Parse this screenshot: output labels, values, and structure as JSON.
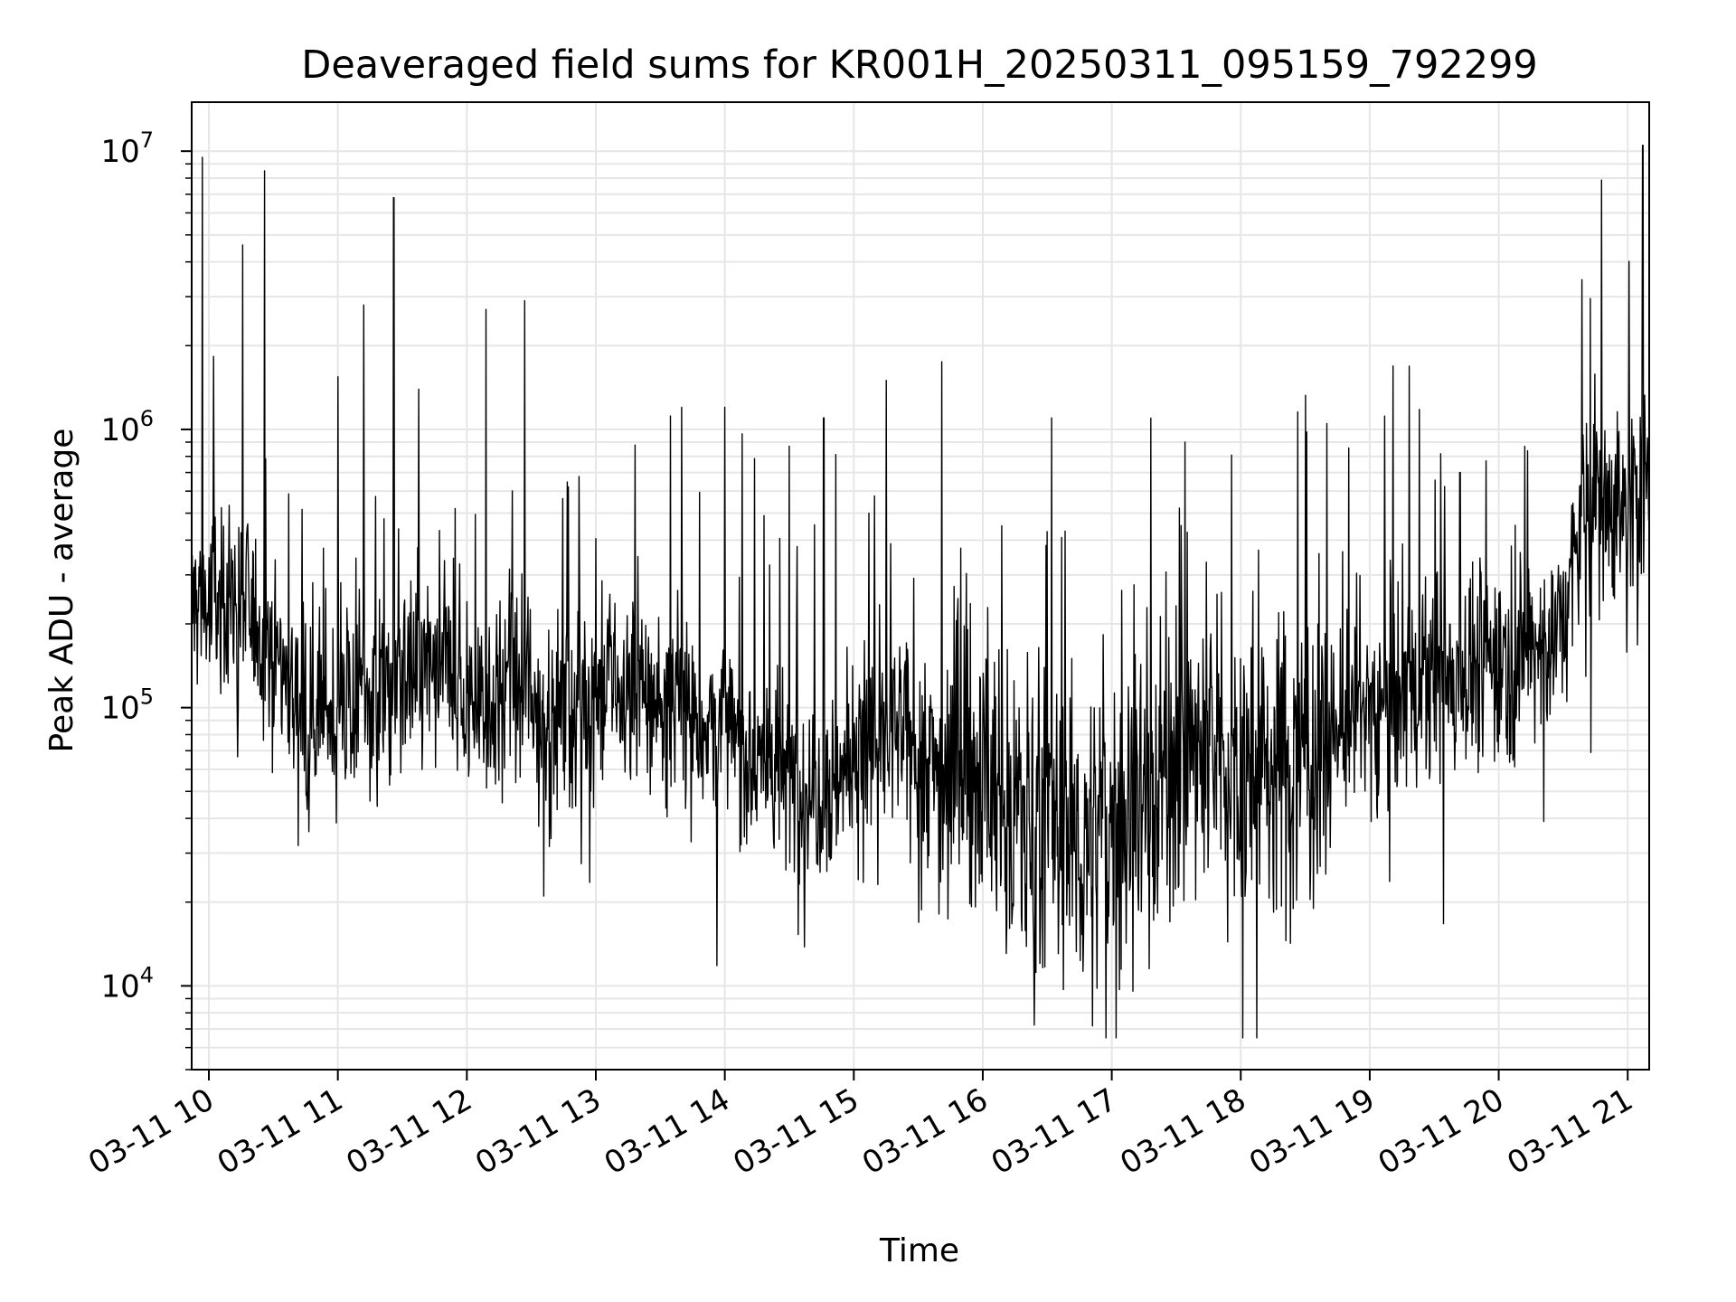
{
  "chart_data": {
    "type": "line",
    "title": "Deaveraged field sums for KR001H_20250311_095159_792299",
    "xlabel": "Time",
    "ylabel": "Peak ADU - average",
    "yscale": "log",
    "grid": true,
    "xlim": [
      "2025-03-11 09:52",
      "2025-03-11 21:10"
    ],
    "ylim": [
      5000,
      15000000
    ],
    "x_ticks": [
      "03-11 10",
      "03-11 11",
      "03-11 12",
      "03-11 13",
      "03-11 14",
      "03-11 15",
      "03-11 16",
      "03-11 17",
      "03-11 18",
      "03-11 19",
      "03-11 20",
      "03-11 21"
    ],
    "y_ticks": [
      {
        "value": 10000,
        "base": "10",
        "exp": "4"
      },
      {
        "value": 100000,
        "base": "10",
        "exp": "5"
      },
      {
        "value": 1000000,
        "base": "10",
        "exp": "6"
      },
      {
        "value": 10000000,
        "base": "10",
        "exp": "7"
      }
    ],
    "series": [
      {
        "color": "#000000",
        "x": [
          "09:52",
          "09:58",
          "10:00",
          "10:10",
          "10:20",
          "10:30",
          "10:40",
          "10:50",
          "11:00",
          "11:10",
          "11:20",
          "11:30",
          "11:40",
          "11:50",
          "12:00",
          "12:10",
          "12:20",
          "12:30",
          "12:40",
          "12:50",
          "13:00",
          "13:10",
          "13:20",
          "13:30",
          "13:40",
          "13:50",
          "14:00",
          "14:10",
          "14:20",
          "14:30",
          "14:40",
          "14:50",
          "15:00",
          "15:10",
          "15:20",
          "15:30",
          "15:40",
          "15:50",
          "16:00",
          "16:10",
          "16:20",
          "16:30",
          "16:40",
          "16:50",
          "17:00",
          "17:10",
          "17:20",
          "17:30",
          "17:40",
          "17:50",
          "18:00",
          "18:10",
          "18:20",
          "18:30",
          "18:40",
          "18:50",
          "19:00",
          "19:10",
          "19:20",
          "19:30",
          "19:40",
          "19:50",
          "20:00",
          "20:10",
          "20:20",
          "20:30",
          "20:40",
          "20:50",
          "21:00",
          "21:10"
        ],
        "y": [
          230000,
          250000,
          220000,
          260000,
          210000,
          170000,
          110000,
          100000,
          95000,
          110000,
          115000,
          125000,
          140000,
          130000,
          110000,
          105000,
          120000,
          100000,
          90000,
          105000,
          110000,
          115000,
          110000,
          105000,
          100000,
          90000,
          80000,
          70000,
          65000,
          55000,
          52000,
          55000,
          65000,
          75000,
          80000,
          70000,
          60000,
          70000,
          55000,
          45000,
          40000,
          38000,
          35000,
          30000,
          40000,
          45000,
          55000,
          65000,
          70000,
          65000,
          60000,
          55000,
          65000,
          70000,
          75000,
          90000,
          100000,
          110000,
          115000,
          120000,
          130000,
          140000,
          150000,
          160000,
          170000,
          200000,
          550000,
          560000,
          520000,
          600000
        ],
        "spikes": [
          {
            "x": "09:57",
            "y": 9500000
          },
          {
            "x": "10:26",
            "y": 8500000
          },
          {
            "x": "11:12",
            "y": 2800000
          },
          {
            "x": "11:26",
            "y": 6800000
          },
          {
            "x": "12:09",
            "y": 2700000
          },
          {
            "x": "12:27",
            "y": 2900000
          },
          {
            "x": "13:40",
            "y": 1200000
          },
          {
            "x": "14:00",
            "y": 1200000
          },
          {
            "x": "14:30",
            "y": 870000
          },
          {
            "x": "14:46",
            "y": 1100000
          },
          {
            "x": "15:15",
            "y": 1500000
          },
          {
            "x": "15:41",
            "y": 1750000
          },
          {
            "x": "16:32",
            "y": 1100000
          },
          {
            "x": "17:34",
            "y": 900000
          },
          {
            "x": "18:40",
            "y": 1050000
          },
          {
            "x": "19:42",
            "y": 700000
          },
          {
            "x": "21:07",
            "y": 10500000
          }
        ]
      }
    ]
  }
}
